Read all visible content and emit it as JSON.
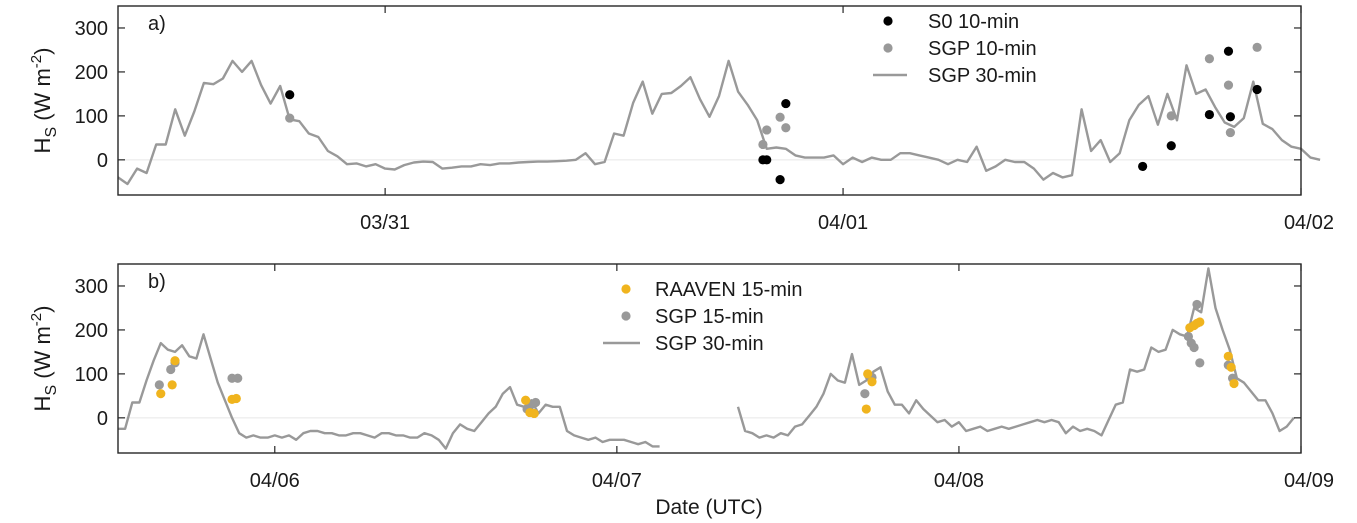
{
  "figure": {
    "xlabel": "Date (UTC)",
    "ylabel_main": "H",
    "ylabel_sub": "S",
    "ylabel_unit": "(W m",
    "ylabel_exp": "-2",
    "ylabel_close": ")"
  },
  "colors": {
    "s0": "#000000",
    "sgp_points": "#999999",
    "sgp_line": "#999999",
    "raaven": "#f0b41e",
    "axis": "#262626",
    "zero_line": "#e8e8e8"
  },
  "chart_data": [
    {
      "type": "line",
      "panel_label": "a)",
      "xlim": [
        "03/30 10:00",
        "04/02 00:00"
      ],
      "ylim": [
        -80,
        350
      ],
      "yticks": [
        0,
        100,
        200,
        300
      ],
      "xtick_labels": [
        "03/31",
        "04/01",
        "04/02"
      ],
      "legend_position": "top-right",
      "series": [
        {
          "name": "S0 10-min",
          "kind": "points",
          "color": "#000000",
          "x_hours": [
            19.0,
            43.8,
            44.0,
            44.7,
            45.0,
            63.7,
            65.2,
            67.2,
            68.2,
            68.3,
            69.7
          ],
          "values": [
            148,
            0,
            0,
            -45,
            128,
            -15,
            32,
            103,
            247,
            98,
            160
          ]
        },
        {
          "name": "SGP 10-min",
          "kind": "points",
          "color": "#999999",
          "x_hours": [
            19.0,
            43.8,
            44.0,
            44.7,
            45.0,
            65.2,
            67.2,
            68.2,
            68.3,
            69.7
          ],
          "values": [
            95,
            35,
            68,
            97,
            73,
            100,
            230,
            170,
            62,
            256
          ]
        },
        {
          "name": "SGP 30-min",
          "kind": "line",
          "color": "#999999",
          "x_start_hour": 10,
          "x_step_hours": 0.5,
          "values": [
            -40,
            -55,
            -20,
            -30,
            35,
            35,
            115,
            55,
            110,
            175,
            172,
            185,
            225,
            200,
            225,
            170,
            128,
            168,
            92,
            88,
            60,
            52,
            20,
            8,
            -10,
            -8,
            -15,
            -10,
            -20,
            -22,
            -12,
            -6,
            -4,
            -5,
            -20,
            -18,
            -15,
            -15,
            -10,
            -12,
            -8,
            -8,
            -6,
            -5,
            -4,
            -4,
            -3,
            -2,
            0,
            15,
            -10,
            -5,
            60,
            55,
            130,
            178,
            105,
            150,
            152,
            168,
            188,
            138,
            98,
            145,
            225,
            155,
            125,
            90,
            25,
            28,
            25,
            10,
            5,
            5,
            5,
            10,
            -10,
            5,
            -5,
            5,
            0,
            0,
            15,
            15,
            10,
            5,
            0,
            -10,
            0,
            -5,
            30,
            -25,
            -15,
            0,
            -5,
            -5,
            -20,
            -45,
            -30,
            -40,
            -35,
            115,
            20,
            45,
            -5,
            15,
            90,
            125,
            145,
            80,
            150,
            90,
            215,
            150,
            160,
            120,
            85,
            75,
            95,
            178,
            82,
            70,
            45,
            30,
            25,
            5,
            0
          ]
        }
      ]
    },
    {
      "type": "line",
      "panel_label": "b)",
      "xlim": [
        "04/05 13:00",
        "04/09 00:00"
      ],
      "ylim": [
        -80,
        350
      ],
      "yticks": [
        0,
        100,
        200,
        300
      ],
      "xtick_labels": [
        "04/06",
        "04/07",
        "04/08",
        "04/09"
      ],
      "legend_position": "top-center",
      "series": [
        {
          "name": "RAAVEN 15-min",
          "kind": "points",
          "color": "#f0b41e",
          "x_hours": [
            16.0,
            16.8,
            17.0,
            21.0,
            21.3,
            41.6,
            41.9,
            42.2,
            65.5,
            65.6,
            65.9,
            88.2,
            88.5,
            88.7,
            88.9,
            90.9,
            91.1,
            91.3
          ],
          "values": [
            55,
            75,
            130,
            42,
            44,
            40,
            12,
            10,
            20,
            100,
            82,
            205,
            210,
            215,
            218,
            140,
            115,
            78
          ]
        },
        {
          "name": "SGP 15-min",
          "kind": "points",
          "color": "#999999",
          "x_hours": [
            15.9,
            16.7,
            17.0,
            21.0,
            21.4,
            41.7,
            42.0,
            42.3,
            65.4,
            65.7,
            65.9,
            88.1,
            88.3,
            88.5,
            88.7,
            88.9,
            90.9,
            91.2
          ],
          "values": [
            75,
            110,
            125,
            90,
            90,
            20,
            30,
            35,
            55,
            95,
            92,
            185,
            170,
            160,
            258,
            125,
            120,
            90
          ]
        },
        {
          "name": "SGP 30-min",
          "kind": "line",
          "color": "#999999",
          "x_start_hour": 13,
          "x_step_hours": 0.5,
          "values": [
            -25,
            -25,
            35,
            35,
            85,
            130,
            170,
            155,
            150,
            165,
            140,
            135,
            190,
            135,
            80,
            40,
            0,
            -35,
            -45,
            -40,
            -45,
            -45,
            -40,
            -45,
            -40,
            -50,
            -35,
            -30,
            -30,
            -35,
            -35,
            -40,
            -40,
            -35,
            -35,
            -40,
            -45,
            -35,
            -35,
            -40,
            -40,
            -45,
            -45,
            -35,
            -40,
            -50,
            -70,
            -35,
            -15,
            -25,
            -30,
            -10,
            10,
            25,
            55,
            70,
            30,
            25,
            40,
            10,
            30,
            25,
            25,
            -30,
            -40,
            -45,
            -50,
            -45,
            -55,
            -50,
            -50,
            -50,
            -55,
            -60,
            -55,
            -65,
            -65,
            null,
            null,
            null,
            null,
            null,
            null,
            null,
            null,
            null,
            null,
            25,
            -30,
            -35,
            -45,
            -40,
            -45,
            -35,
            -40,
            -20,
            -15,
            5,
            25,
            55,
            100,
            85,
            80,
            145,
            75,
            85,
            105,
            115,
            60,
            30,
            30,
            10,
            40,
            20,
            5,
            -10,
            -5,
            -20,
            -10,
            -30,
            -25,
            -20,
            -30,
            -25,
            -20,
            -25,
            -20,
            -15,
            -10,
            -5,
            -10,
            -5,
            -10,
            -35,
            -20,
            -30,
            -25,
            -30,
            -40,
            -5,
            30,
            35,
            110,
            105,
            110,
            160,
            150,
            155,
            200,
            190,
            185,
            250,
            240,
            340,
            250,
            200,
            155,
            90,
            80,
            60,
            40,
            40,
            10,
            -30,
            -20,
            0
          ]
        }
      ]
    }
  ]
}
